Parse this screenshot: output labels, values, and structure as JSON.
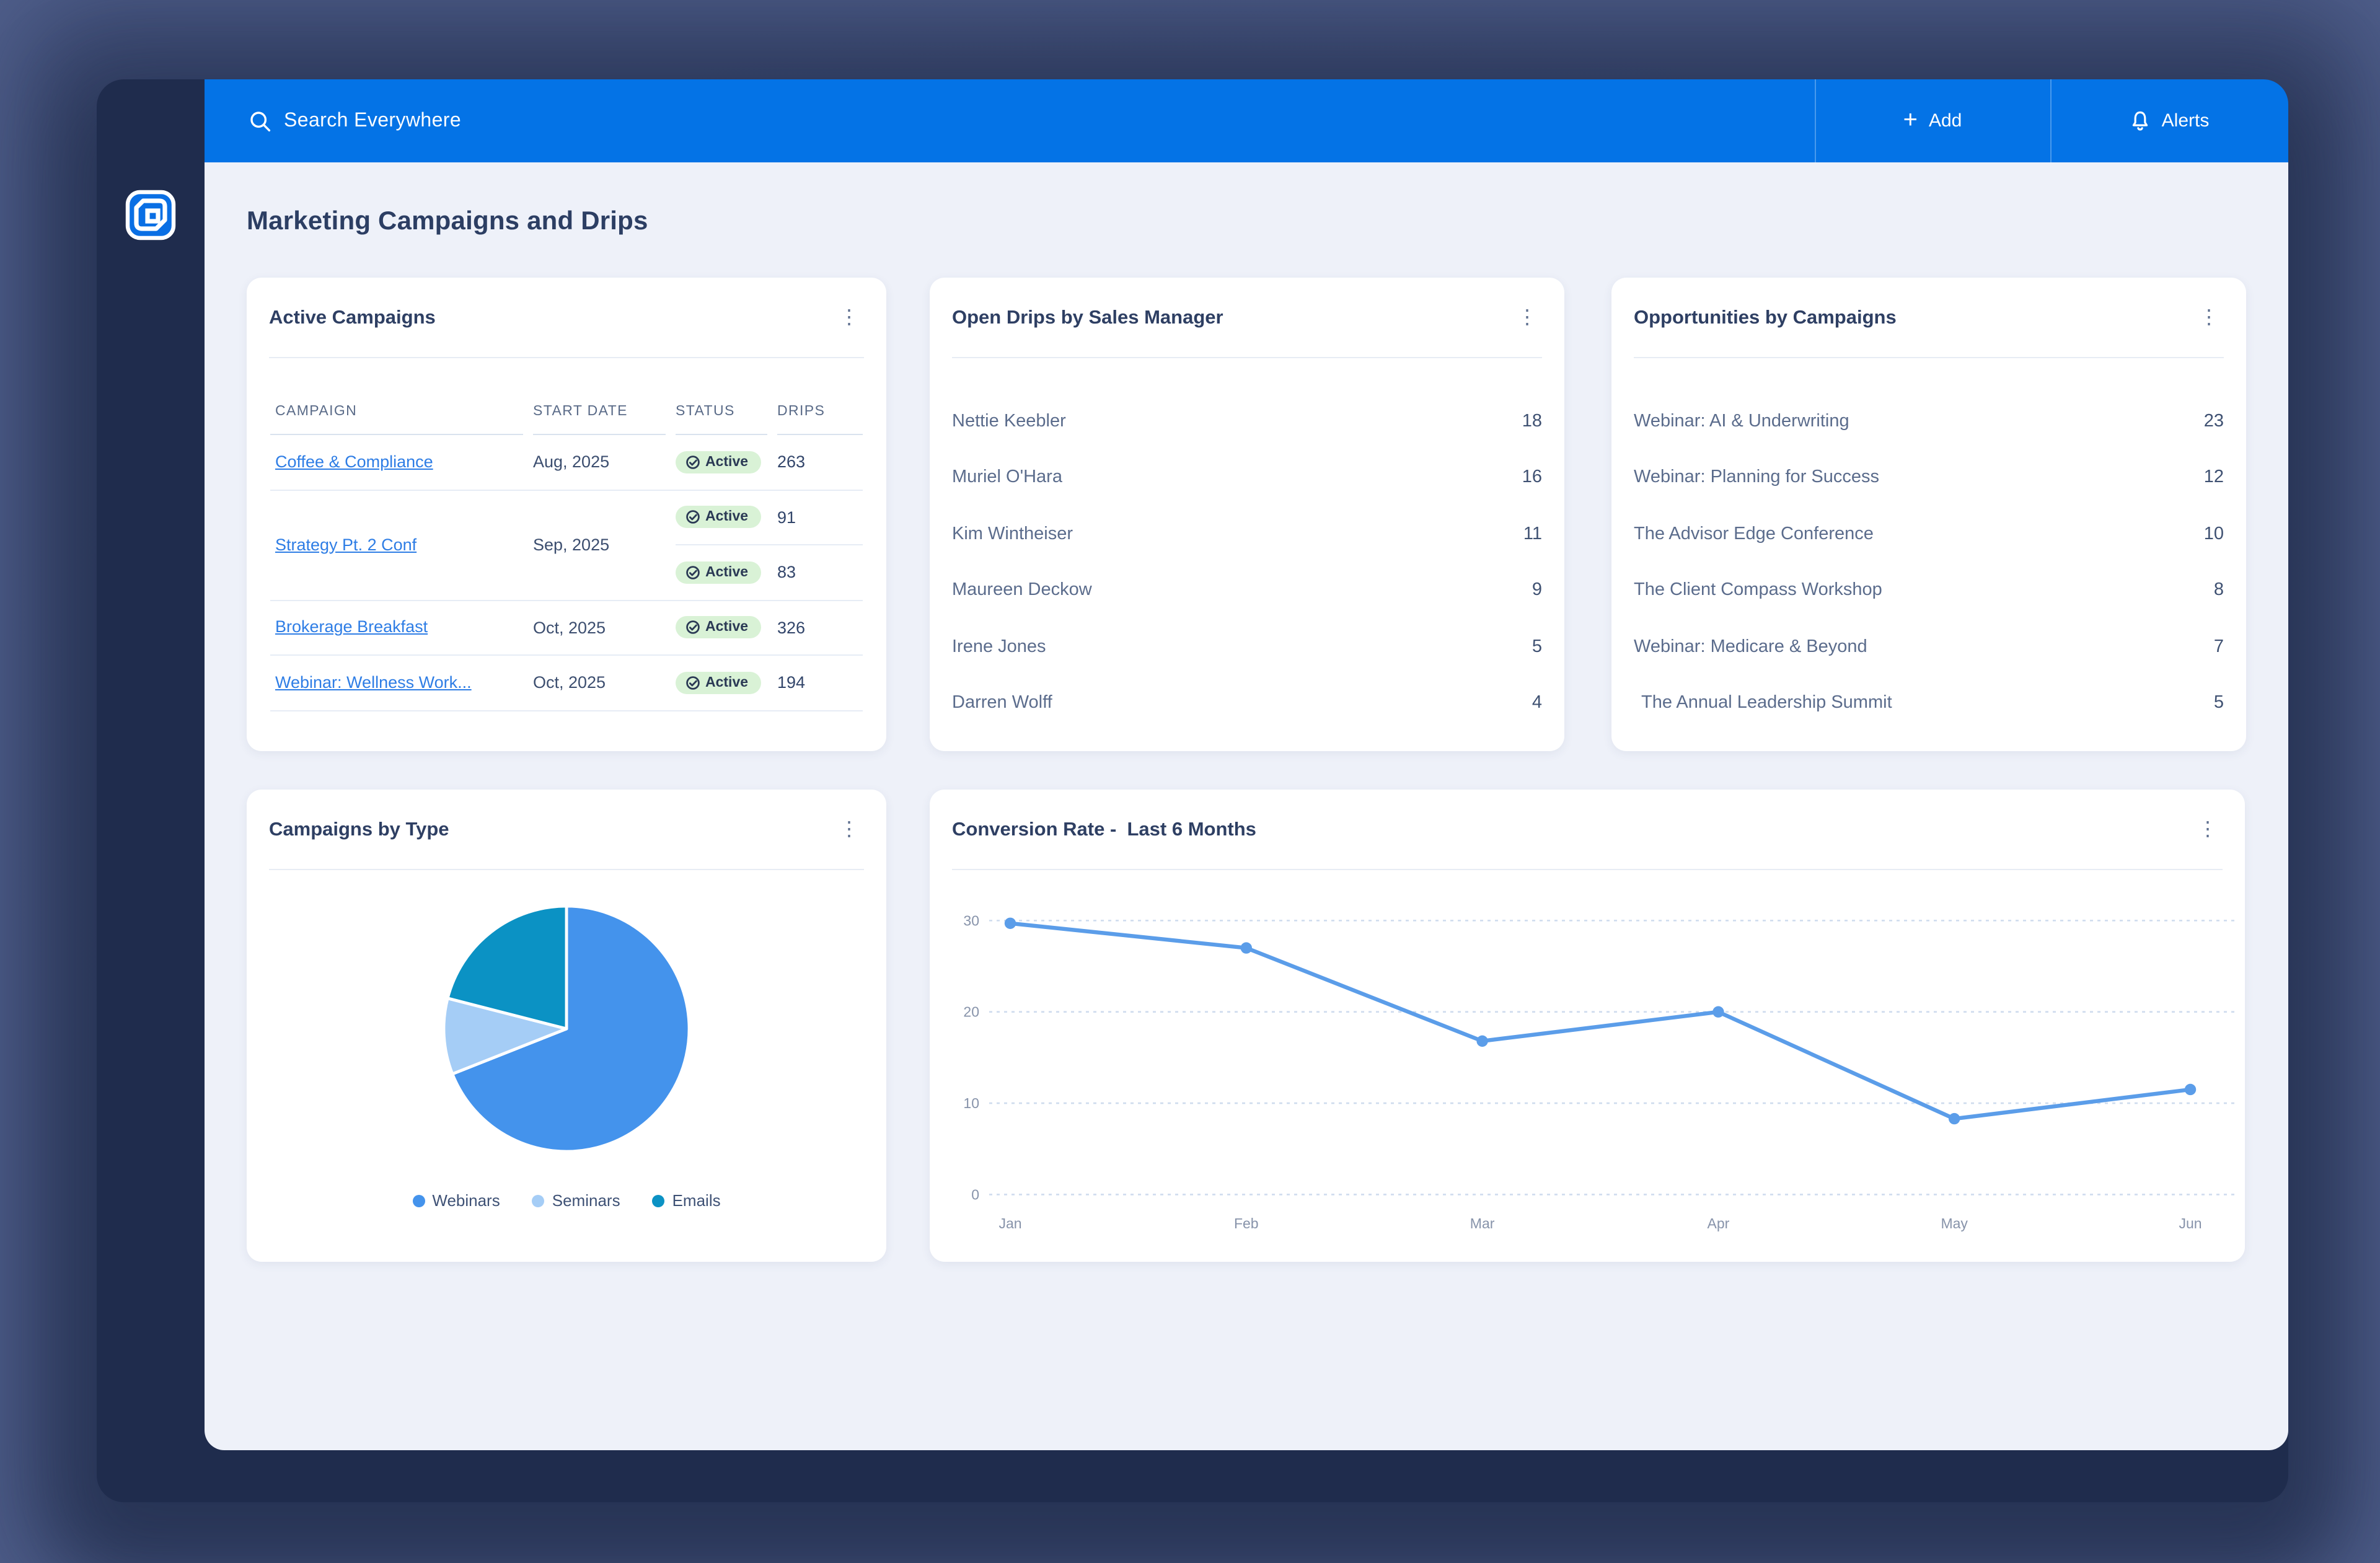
{
  "topbar": {
    "search_placeholder": "Search Everywhere",
    "add_label": "Add",
    "alerts_label": "Alerts"
  },
  "page": {
    "title": "Marketing Campaigns and Drips"
  },
  "icons": {
    "kebab": "⋮",
    "plus": "+"
  },
  "colors": {
    "topbar_blue": "#0473e6",
    "frame_navy": "#1f2c4d",
    "content_bg": "#eef1f9",
    "link_blue": "#2e7de5",
    "badge_green_bg": "#d9f2d6",
    "badge_text": "#2b3a55"
  },
  "cards": {
    "active_campaigns": {
      "title": "Active Campaigns",
      "columns": [
        "CAMPAIGN",
        "START DATE",
        "STATUS",
        "DRIPS"
      ],
      "rows": [
        {
          "campaign": "Coffee & Compliance",
          "start": "Aug, 2025",
          "entries": [
            {
              "status": "Active",
              "drips": "263"
            }
          ]
        },
        {
          "campaign": "Strategy Pt. 2 Conf",
          "start": "Sep, 2025",
          "entries": [
            {
              "status": "Active",
              "drips": "91"
            },
            {
              "status": "Active",
              "drips": "83"
            }
          ]
        },
        {
          "campaign": "Brokerage Breakfast",
          "start": "Oct, 2025",
          "entries": [
            {
              "status": "Active",
              "drips": "326"
            }
          ]
        },
        {
          "campaign": "Webinar: Wellness Work...",
          "start": "Oct, 2025",
          "entries": [
            {
              "status": "Active",
              "drips": "194"
            }
          ]
        }
      ]
    },
    "open_drips": {
      "title": "Open Drips by Sales Manager",
      "items": [
        [
          "Nettie Keebler",
          "18"
        ],
        [
          "Muriel O'Hara",
          "16"
        ],
        [
          "Kim Wintheiser",
          "11"
        ],
        [
          "Maureen Deckow",
          "9"
        ],
        [
          "Irene Jones",
          "5"
        ],
        [
          "Darren Wolff",
          "4"
        ]
      ]
    },
    "opportunities": {
      "title": "Opportunities by Campaigns",
      "items": [
        [
          "Webinar: AI & Underwriting",
          "23"
        ],
        [
          "Webinar: Planning for Success",
          "12"
        ],
        [
          "The Advisor Edge Conference",
          "10"
        ],
        [
          "The Client Compass Workshop",
          "8"
        ],
        [
          "Webinar: Medicare & Beyond",
          "7"
        ],
        [
          "The Annual Leadership Summit",
          "5"
        ]
      ]
    },
    "campaigns_by_type": {
      "title": "Campaigns by Type"
    },
    "conversion_rate": {
      "title": "Conversion Rate -  Last 6 Months"
    }
  },
  "chart_data": [
    {
      "type": "pie",
      "title": "Campaigns by Type",
      "labels": [
        "Webinars",
        "Seminars",
        "Emails"
      ],
      "values": [
        69,
        10,
        21
      ],
      "colors": [
        "#4493ec",
        "#a5cdf6",
        "#0b92c4"
      ],
      "legend_position": "bottom"
    },
    {
      "type": "line",
      "title": "Conversion Rate - Last 6 Months",
      "x": [
        "Jan",
        "Feb",
        "Mar",
        "Apr",
        "May",
        "Jun"
      ],
      "y": [
        29.7,
        27,
        16.8,
        20,
        8.3,
        11.5
      ],
      "yticks": [
        0,
        10,
        20,
        30
      ],
      "ylim": [
        0,
        33
      ],
      "grid": "dashed-horizontal",
      "line_color": "#5b9de9",
      "axis_label_color": "#8793aa"
    }
  ]
}
